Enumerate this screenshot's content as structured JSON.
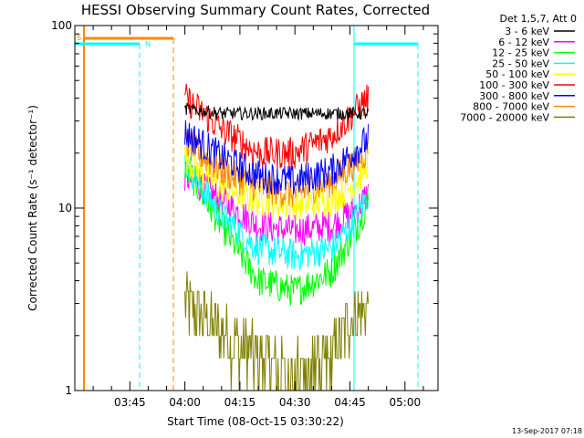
{
  "chart_data": {
    "type": "line",
    "title": "HESSI Observing Summary Count Rates, Corrected",
    "xlabel": "Start Time (08-Oct-15 03:30:22)",
    "ylabel": "Corrected Count Rate (s⁻¹ detector⁻¹)",
    "x_tick_labels": [
      "03:45",
      "04:00",
      "04:15",
      "04:30",
      "04:45",
      "05:00"
    ],
    "y_tick_labels": [
      "1",
      "10",
      "100"
    ],
    "xlim": [
      "03:30",
      "05:09"
    ],
    "ylim": [
      1,
      100
    ],
    "yscale": "log",
    "grid": false,
    "legend_position": "right",
    "legend_header": "Det 1,5,7, Att 0",
    "timestamp": "13-Sep-2017 07:18",
    "series": [
      {
        "name": "3 - 6 keV",
        "color": "#000000",
        "x": [
          "04:00",
          "04:10",
          "04:20",
          "04:30",
          "04:40",
          "04:47",
          "04:50"
        ],
        "values": [
          35,
          33,
          33,
          33,
          33,
          33,
          33
        ]
      },
      {
        "name": "6 - 12 keV",
        "color": "#ff00ff",
        "x": [
          "04:00",
          "04:10",
          "04:20",
          "04:30",
          "04:40",
          "04:47",
          "04:50"
        ],
        "values": [
          15,
          11,
          8,
          7.5,
          8,
          10,
          12
        ]
      },
      {
        "name": "12 - 25 keV",
        "color": "#00ff00",
        "x": [
          "04:00",
          "04:10",
          "04:20",
          "04:30",
          "04:40",
          "04:47",
          "04:50"
        ],
        "values": [
          17,
          8,
          4,
          3.5,
          4.5,
          8,
          11
        ]
      },
      {
        "name": "25 - 50 keV",
        "color": "#00ffff",
        "x": [
          "04:00",
          "04:10",
          "04:20",
          "04:30",
          "04:40",
          "04:47",
          "04:50"
        ],
        "values": [
          18,
          9,
          6,
          5.5,
          6,
          9,
          12
        ]
      },
      {
        "name": "50 - 100 keV",
        "color": "#ffff00",
        "x": [
          "04:00",
          "04:10",
          "04:20",
          "04:30",
          "04:40",
          "04:47",
          "04:50"
        ],
        "values": [
          19,
          13,
          11,
          10.5,
          11,
          14,
          18
        ]
      },
      {
        "name": "100 - 300 keV",
        "color": "#ff0000",
        "x": [
          "04:00",
          "04:10",
          "04:20",
          "04:30",
          "04:40",
          "04:47",
          "04:50"
        ],
        "values": [
          40,
          27,
          20,
          20,
          25,
          35,
          40
        ]
      },
      {
        "name": "300 - 800 keV",
        "color": "#0000ff",
        "x": [
          "04:00",
          "04:10",
          "04:20",
          "04:30",
          "04:40",
          "04:47",
          "04:50"
        ],
        "values": [
          26,
          19,
          15,
          14,
          16,
          21,
          24
        ]
      },
      {
        "name": "800 - 7000 keV",
        "color": "#ff8800",
        "x": [
          "04:00",
          "04:10",
          "04:20",
          "04:30",
          "04:40",
          "04:47",
          "04:50"
        ],
        "values": [
          23,
          16,
          13,
          12,
          14,
          18,
          21
        ]
      },
      {
        "name": "7000 - 20000 keV",
        "color": "#808000",
        "x": [
          "04:00",
          "04:05",
          "04:10",
          "04:20",
          "04:30",
          "04:40",
          "04:45",
          "04:50"
        ],
        "values": [
          3,
          2.5,
          2,
          1.5,
          1.2,
          1.5,
          2.5,
          3
        ]
      }
    ],
    "markers": [
      {
        "label": "S",
        "color": "#ff8800"
      },
      {
        "label": "N",
        "color": "#00ffff"
      }
    ]
  }
}
